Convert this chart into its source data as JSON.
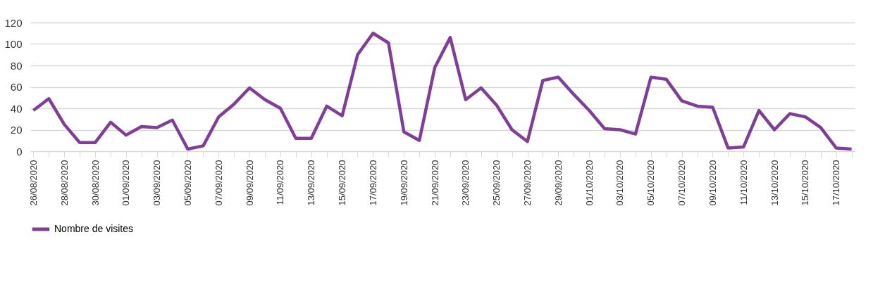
{
  "chart_data": {
    "type": "line",
    "categories": [
      "26/08/2020",
      null,
      "28/08/2020",
      null,
      "30/08/2020",
      null,
      "01/09/2020",
      null,
      "03/09/2020",
      null,
      "05/09/2020",
      null,
      "07/09/2020",
      null,
      "09/09/2020",
      null,
      "11/09/2020",
      null,
      "13/09/2020",
      null,
      "15/09/2020",
      null,
      "17/09/2020",
      null,
      "19/09/2020",
      null,
      "21/09/2020",
      null,
      "23/09/2020",
      null,
      "25/09/2020",
      null,
      "27/09/2020",
      null,
      "29/09/2020",
      null,
      "01/10/2020",
      null,
      "03/10/2020",
      null,
      "05/10/2020",
      null,
      "07/10/2020",
      null,
      "09/10/2020",
      null,
      "11/10/2020",
      null,
      "13/10/2020",
      null,
      "15/10/2020",
      null,
      "17/10/2020",
      null
    ],
    "series": [
      {
        "name": "Nombre de visites",
        "color": "#7f3f98",
        "values": [
          38,
          49,
          25,
          8,
          8,
          27,
          15,
          23,
          22,
          29,
          2,
          5,
          32,
          44,
          59,
          48,
          40,
          12,
          12,
          42,
          33,
          90,
          110,
          101,
          18,
          10,
          78,
          106,
          48,
          59,
          43,
          20,
          9,
          66,
          69,
          53,
          38,
          21,
          20,
          16,
          69,
          67,
          47,
          42,
          41,
          3,
          4,
          38,
          20,
          35,
          32,
          22,
          3,
          2
        ]
      }
    ],
    "ylim": [
      0,
      120
    ],
    "yticks": [
      0,
      20,
      40,
      60,
      80,
      100,
      120
    ],
    "grid": "y",
    "legend": "bottom",
    "marker": "none",
    "line_style": "solid"
  }
}
